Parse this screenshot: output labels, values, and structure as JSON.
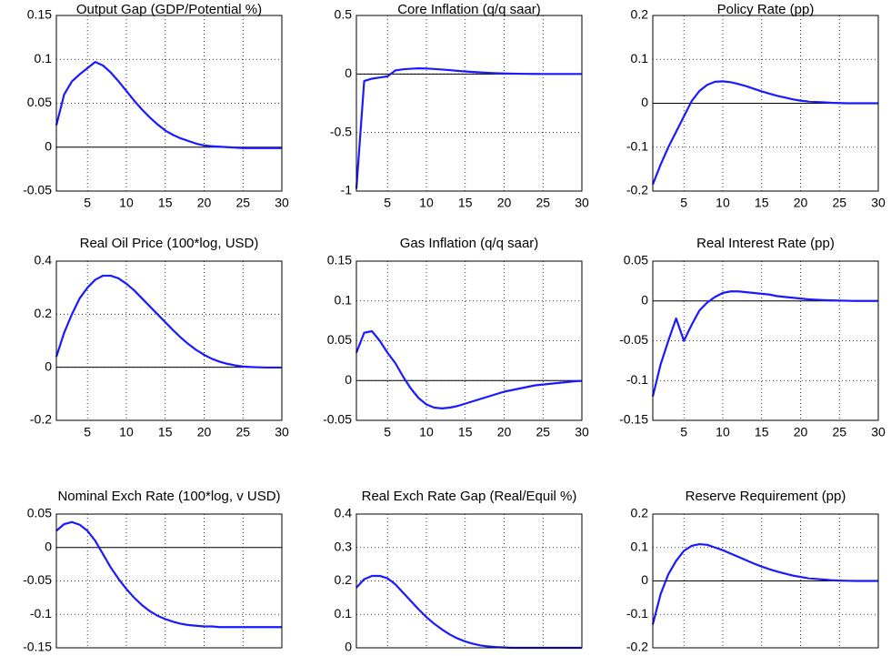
{
  "chart_data": [
    {
      "type": "line",
      "title": "Output Gap (GDP/Potential %)",
      "color": "#1a1aff",
      "x": [
        1,
        2,
        3,
        4,
        5,
        6,
        7,
        8,
        9,
        10,
        11,
        12,
        13,
        14,
        15,
        16,
        17,
        18,
        19,
        20,
        21,
        22,
        23,
        24,
        25,
        26,
        27,
        28,
        29,
        30
      ],
      "values": [
        0.025,
        0.06,
        0.075,
        0.083,
        0.09,
        0.097,
        0.093,
        0.085,
        0.075,
        0.064,
        0.053,
        0.043,
        0.034,
        0.026,
        0.019,
        0.014,
        0.01,
        0.007,
        0.004,
        0.002,
        0.001,
        0.0005,
        0,
        -0.0005,
        -0.001,
        -0.001,
        -0.001,
        -0.001,
        -0.001,
        -0.001
      ],
      "xlim": [
        1,
        30
      ],
      "xticks": [
        5,
        10,
        15,
        20,
        25,
        30
      ],
      "ylim": [
        -0.05,
        0.15
      ],
      "yticks": [
        -0.05,
        0,
        0.05,
        0.1,
        0.15
      ],
      "grid": true
    },
    {
      "type": "line",
      "title": "Core Inflation (q/q saar)",
      "color": "#1a1aff",
      "x": [
        1,
        2,
        3,
        4,
        5,
        6,
        7,
        8,
        9,
        10,
        11,
        12,
        13,
        14,
        15,
        16,
        17,
        18,
        19,
        20,
        21,
        22,
        23,
        24,
        25,
        26,
        27,
        28,
        29,
        30
      ],
      "values": [
        -0.98,
        -0.06,
        -0.04,
        -0.03,
        -0.02,
        0.03,
        0.04,
        0.045,
        0.048,
        0.047,
        0.043,
        0.038,
        0.033,
        0.027,
        0.022,
        0.017,
        0.013,
        0.01,
        0.007,
        0.005,
        0.003,
        0.002,
        0.001,
        0.0005,
        0,
        0,
        0,
        0,
        0,
        0
      ],
      "xlim": [
        1,
        30
      ],
      "xticks": [
        5,
        10,
        15,
        20,
        25,
        30
      ],
      "ylim": [
        -1,
        0.5
      ],
      "yticks": [
        -1,
        -0.5,
        0,
        0.5
      ],
      "grid": true
    },
    {
      "type": "line",
      "title": "Policy Rate (pp)",
      "color": "#1a1aff",
      "x": [
        1,
        2,
        3,
        4,
        5,
        6,
        7,
        8,
        9,
        10,
        11,
        12,
        13,
        14,
        15,
        16,
        17,
        18,
        19,
        20,
        21,
        22,
        23,
        24,
        25,
        26,
        27,
        28,
        29,
        30
      ],
      "values": [
        -0.185,
        -0.14,
        -0.1,
        -0.065,
        -0.03,
        0.005,
        0.028,
        0.042,
        0.049,
        0.05,
        0.048,
        0.044,
        0.039,
        0.033,
        0.027,
        0.022,
        0.017,
        0.013,
        0.009,
        0.006,
        0.004,
        0.003,
        0.002,
        0.001,
        0.0005,
        0,
        0,
        0,
        0,
        0
      ],
      "xlim": [
        1,
        30
      ],
      "xticks": [
        5,
        10,
        15,
        20,
        25,
        30
      ],
      "ylim": [
        -0.2,
        0.2
      ],
      "yticks": [
        -0.2,
        -0.1,
        0,
        0.1,
        0.2
      ],
      "grid": true
    },
    {
      "type": "line",
      "title": "Real Oil Price (100*log, USD)",
      "color": "#1a1aff",
      "x": [
        1,
        2,
        3,
        4,
        5,
        6,
        7,
        8,
        9,
        10,
        11,
        12,
        13,
        14,
        15,
        16,
        17,
        18,
        19,
        20,
        21,
        22,
        23,
        24,
        25,
        26,
        27,
        28,
        29,
        30
      ],
      "values": [
        0.04,
        0.13,
        0.2,
        0.26,
        0.3,
        0.33,
        0.345,
        0.345,
        0.335,
        0.315,
        0.29,
        0.26,
        0.23,
        0.2,
        0.17,
        0.14,
        0.112,
        0.087,
        0.065,
        0.047,
        0.032,
        0.021,
        0.013,
        0.007,
        0.003,
        0.001,
        0,
        -0.001,
        -0.001,
        -0.001
      ],
      "xlim": [
        1,
        30
      ],
      "xticks": [
        5,
        10,
        15,
        20,
        25,
        30
      ],
      "ylim": [
        -0.2,
        0.4
      ],
      "yticks": [
        -0.2,
        0,
        0.2,
        0.4
      ],
      "grid": true
    },
    {
      "type": "line",
      "title": "Gas Inflation (q/q saar)",
      "color": "#1a1aff",
      "x": [
        1,
        2,
        3,
        4,
        5,
        6,
        7,
        8,
        9,
        10,
        11,
        12,
        13,
        14,
        15,
        16,
        17,
        18,
        19,
        20,
        21,
        22,
        23,
        24,
        25,
        26,
        27,
        28,
        29,
        30
      ],
      "values": [
        0.035,
        0.06,
        0.062,
        0.05,
        0.035,
        0.022,
        0.005,
        -0.01,
        -0.022,
        -0.03,
        -0.034,
        -0.035,
        -0.034,
        -0.032,
        -0.029,
        -0.026,
        -0.023,
        -0.02,
        -0.017,
        -0.014,
        -0.012,
        -0.01,
        -0.008,
        -0.006,
        -0.005,
        -0.004,
        -0.003,
        -0.002,
        -0.001,
        -0.0005
      ],
      "xlim": [
        1,
        30
      ],
      "xticks": [
        5,
        10,
        15,
        20,
        25,
        30
      ],
      "ylim": [
        -0.05,
        0.15
      ],
      "yticks": [
        -0.05,
        0,
        0.05,
        0.1,
        0.15
      ],
      "grid": true
    },
    {
      "type": "line",
      "title": "Real Interest Rate (pp)",
      "color": "#1a1aff",
      "x": [
        1,
        2,
        3,
        4,
        5,
        6,
        7,
        8,
        9,
        10,
        11,
        12,
        13,
        14,
        15,
        16,
        17,
        18,
        19,
        20,
        21,
        22,
        23,
        24,
        25,
        26,
        27,
        28,
        29,
        30
      ],
      "values": [
        -0.12,
        -0.08,
        -0.05,
        -0.022,
        -0.05,
        -0.03,
        -0.012,
        -0.002,
        0.005,
        0.01,
        0.012,
        0.012,
        0.011,
        0.01,
        0.009,
        0.008,
        0.006,
        0.005,
        0.004,
        0.003,
        0.002,
        0.0015,
        0.001,
        0.0007,
        0.0004,
        0.0002,
        0,
        0,
        0,
        0
      ],
      "xlim": [
        1,
        30
      ],
      "xticks": [
        5,
        10,
        15,
        20,
        25,
        30
      ],
      "ylim": [
        -0.15,
        0.05
      ],
      "yticks": [
        -0.15,
        -0.1,
        -0.05,
        0,
        0.05
      ],
      "grid": true
    },
    {
      "type": "line",
      "title": "Nominal Exch Rate (100*log, v USD)",
      "color": "#1a1aff",
      "x": [
        1,
        2,
        3,
        4,
        5,
        6,
        7,
        8,
        9,
        10,
        11,
        12,
        13,
        14,
        15,
        16,
        17,
        18,
        19,
        20,
        21,
        22,
        23,
        24,
        25,
        26,
        27,
        28,
        29,
        30
      ],
      "values": [
        0.025,
        0.035,
        0.038,
        0.034,
        0.025,
        0.01,
        -0.01,
        -0.03,
        -0.047,
        -0.062,
        -0.075,
        -0.086,
        -0.095,
        -0.102,
        -0.107,
        -0.111,
        -0.114,
        -0.116,
        -0.117,
        -0.118,
        -0.118,
        -0.119,
        -0.119,
        -0.119,
        -0.119,
        -0.119,
        -0.119,
        -0.119,
        -0.119,
        -0.119
      ],
      "xlim": [
        1,
        30
      ],
      "xticks": [
        5,
        10,
        15,
        20,
        25,
        30
      ],
      "ylim": [
        -0.15,
        0.05
      ],
      "yticks": [
        -0.15,
        -0.1,
        -0.05,
        0,
        0.05
      ],
      "grid": true
    },
    {
      "type": "line",
      "title": "Real Exch Rate Gap (Real/Equil %)",
      "color": "#1a1aff",
      "x": [
        1,
        2,
        3,
        4,
        5,
        6,
        7,
        8,
        9,
        10,
        11,
        12,
        13,
        14,
        15,
        16,
        17,
        18,
        19,
        20,
        21,
        22,
        23,
        24,
        25,
        26,
        27,
        28,
        29,
        30
      ],
      "values": [
        0.18,
        0.205,
        0.215,
        0.215,
        0.208,
        0.19,
        0.165,
        0.14,
        0.115,
        0.092,
        0.072,
        0.055,
        0.04,
        0.028,
        0.019,
        0.012,
        0.007,
        0.004,
        0.002,
        0.001,
        0,
        0,
        0,
        0,
        0,
        0,
        0,
        0,
        0,
        0
      ],
      "xlim": [
        1,
        30
      ],
      "xticks": [
        5,
        10,
        15,
        20,
        25,
        30
      ],
      "ylim": [
        0,
        0.4
      ],
      "yticks": [
        0,
        0.1,
        0.2,
        0.3,
        0.4
      ],
      "grid": true
    },
    {
      "type": "line",
      "title": "Reserve Requirement (pp)",
      "color": "#1a1aff",
      "x": [
        1,
        2,
        3,
        4,
        5,
        6,
        7,
        8,
        9,
        10,
        11,
        12,
        13,
        14,
        15,
        16,
        17,
        18,
        19,
        20,
        21,
        22,
        23,
        24,
        25,
        26,
        27,
        28,
        29,
        30
      ],
      "values": [
        -0.13,
        -0.04,
        0.02,
        0.06,
        0.09,
        0.105,
        0.11,
        0.108,
        0.1,
        0.092,
        0.082,
        0.072,
        0.062,
        0.052,
        0.043,
        0.035,
        0.028,
        0.022,
        0.016,
        0.012,
        0.008,
        0.006,
        0.004,
        0.002,
        0.001,
        0.0005,
        0,
        0,
        0,
        0
      ],
      "xlim": [
        1,
        30
      ],
      "xticks": [
        5,
        10,
        15,
        20,
        25,
        30
      ],
      "ylim": [
        -0.2,
        0.2
      ],
      "yticks": [
        -0.2,
        -0.1,
        0,
        0.1,
        0.2
      ],
      "grid": true
    }
  ]
}
